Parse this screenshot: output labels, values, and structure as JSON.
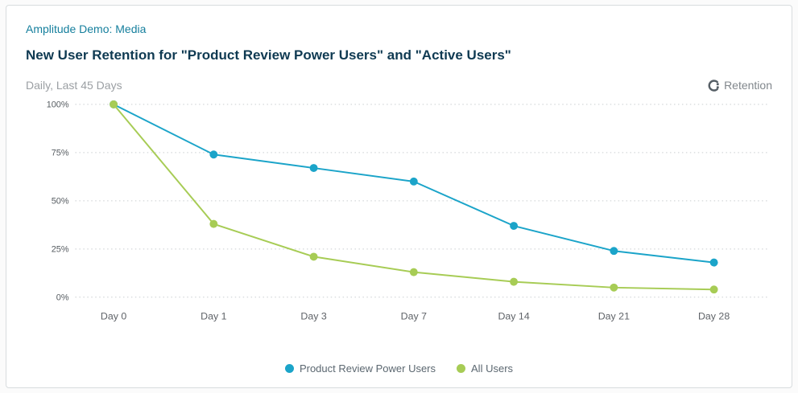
{
  "header": {
    "breadcrumb": "Amplitude Demo: Media",
    "title": "New User Retention for \"Product Review Power Users\" and \"Active Users\"",
    "subtitle": "Daily, Last 45 Days",
    "widget_type_label": "Retention",
    "widget_type_icon": "retention-icon"
  },
  "colors": {
    "series_blue": "#1ba4c9",
    "series_green": "#a7cc55",
    "breadcrumb_teal": "#157f9d",
    "title_navy": "#0f3a52",
    "gridline": "#c9cdd0",
    "axis_label": "#5f6368"
  },
  "chart_data": {
    "type": "line",
    "title": "New User Retention for \"Product Review Power Users\" and \"Active Users\"",
    "subtitle": "Daily, Last 45 Days",
    "categories": [
      "Day 0",
      "Day 1",
      "Day 3",
      "Day 7",
      "Day 14",
      "Day 21",
      "Day 28"
    ],
    "series": [
      {
        "name": "Product Review Power Users",
        "color": "#1ba4c9",
        "values": [
          100,
          74,
          67,
          60,
          37,
          24,
          18
        ]
      },
      {
        "name": "All Users",
        "color": "#a7cc55",
        "values": [
          100,
          38,
          21,
          13,
          8,
          5,
          4
        ]
      }
    ],
    "xlabel": "",
    "ylabel": "",
    "ylim": [
      0,
      100
    ],
    "ytick_labels": [
      "0%",
      "25%",
      "50%",
      "75%",
      "100%"
    ],
    "grid": "horizontal-dotted",
    "legend_position": "bottom"
  }
}
